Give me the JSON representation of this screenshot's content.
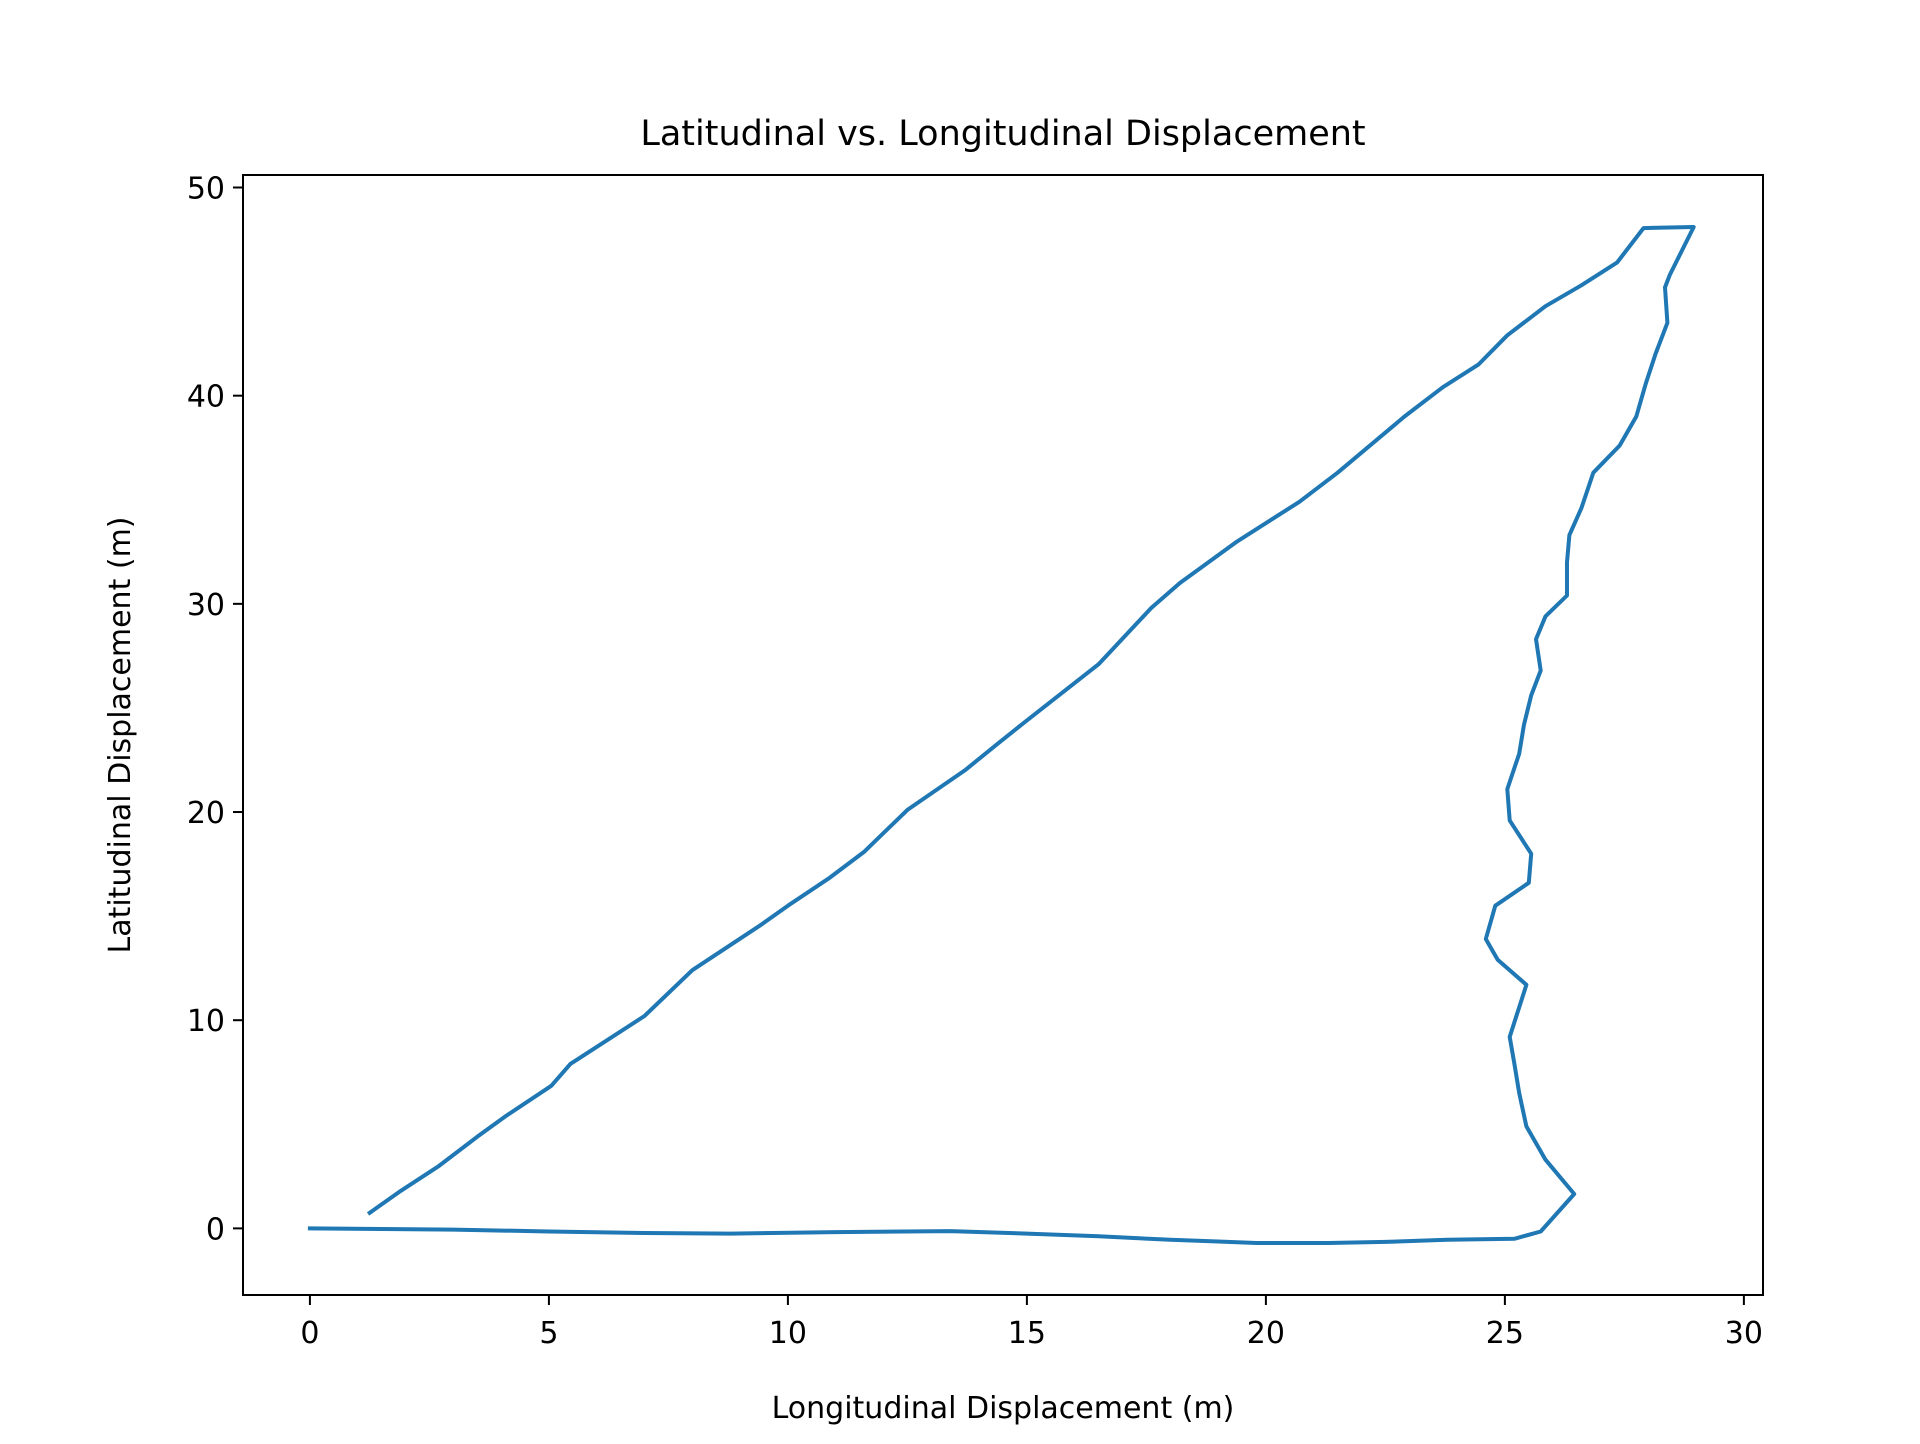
{
  "chart_data": {
    "type": "line",
    "title": "Latitudinal vs. Longitudinal Displacement",
    "xlabel": "Longitudinal Displacement (m)",
    "ylabel": "Latitudinal Displacement (m)",
    "xlim": [
      -1.4,
      30.4
    ],
    "ylim": [
      -3.2,
      50.6
    ],
    "xticks": [
      0,
      5,
      10,
      15,
      20,
      25,
      30
    ],
    "yticks": [
      0,
      10,
      20,
      30,
      40,
      50
    ],
    "grid": false,
    "legend": "none",
    "series": [
      {
        "color": "#1f77b4",
        "points": [
          [
            0.0,
            0.0
          ],
          [
            1.5,
            -0.03
          ],
          [
            3.0,
            -0.06
          ],
          [
            5.0,
            -0.15
          ],
          [
            7.0,
            -0.22
          ],
          [
            8.8,
            -0.25
          ],
          [
            11.0,
            -0.18
          ],
          [
            13.4,
            -0.13
          ],
          [
            15.0,
            -0.25
          ],
          [
            16.5,
            -0.38
          ],
          [
            18.0,
            -0.55
          ],
          [
            19.0,
            -0.63
          ],
          [
            19.8,
            -0.7
          ],
          [
            21.3,
            -0.7
          ],
          [
            22.5,
            -0.65
          ],
          [
            23.8,
            -0.55
          ],
          [
            25.2,
            -0.5
          ],
          [
            25.75,
            -0.15
          ],
          [
            26.45,
            1.65
          ],
          [
            25.85,
            3.3
          ],
          [
            25.45,
            4.9
          ],
          [
            25.3,
            6.5
          ],
          [
            25.2,
            7.9
          ],
          [
            25.1,
            9.2
          ],
          [
            25.45,
            11.7
          ],
          [
            24.85,
            12.9
          ],
          [
            24.6,
            13.9
          ],
          [
            24.8,
            15.5
          ],
          [
            25.5,
            16.6
          ],
          [
            25.55,
            18.0
          ],
          [
            25.1,
            19.6
          ],
          [
            25.05,
            21.1
          ],
          [
            25.3,
            22.8
          ],
          [
            25.4,
            24.2
          ],
          [
            25.55,
            25.6
          ],
          [
            25.75,
            26.8
          ],
          [
            25.65,
            28.3
          ],
          [
            25.85,
            29.4
          ],
          [
            26.3,
            30.4
          ],
          [
            26.3,
            32.0
          ],
          [
            26.35,
            33.3
          ],
          [
            26.6,
            34.6
          ],
          [
            26.85,
            36.3
          ],
          [
            27.4,
            37.6
          ],
          [
            27.75,
            39.0
          ],
          [
            27.95,
            40.6
          ],
          [
            28.15,
            42.0
          ],
          [
            28.4,
            43.5
          ],
          [
            28.35,
            45.2
          ],
          [
            28.45,
            45.8
          ],
          [
            28.95,
            48.1
          ],
          [
            27.9,
            48.05
          ],
          [
            27.35,
            46.4
          ],
          [
            26.6,
            45.3
          ],
          [
            25.85,
            44.3
          ],
          [
            25.05,
            42.9
          ],
          [
            24.45,
            41.5
          ],
          [
            23.7,
            40.4
          ],
          [
            22.9,
            39.0
          ],
          [
            21.5,
            36.3
          ],
          [
            20.7,
            34.9
          ],
          [
            19.4,
            33.0
          ],
          [
            18.2,
            31.0
          ],
          [
            17.6,
            29.8
          ],
          [
            16.5,
            27.1
          ],
          [
            15.0,
            24.4
          ],
          [
            14.4,
            23.3
          ],
          [
            13.7,
            22.0
          ],
          [
            12.5,
            20.1
          ],
          [
            11.6,
            18.1
          ],
          [
            10.85,
            16.8
          ],
          [
            10.0,
            15.5
          ],
          [
            9.45,
            14.6
          ],
          [
            8.0,
            12.4
          ],
          [
            7.0,
            10.2
          ],
          [
            5.45,
            7.9
          ],
          [
            5.05,
            6.85
          ],
          [
            4.1,
            5.4
          ],
          [
            3.5,
            4.4
          ],
          [
            2.7,
            3.0
          ],
          [
            1.9,
            1.8
          ],
          [
            1.25,
            0.75
          ]
        ]
      }
    ]
  }
}
